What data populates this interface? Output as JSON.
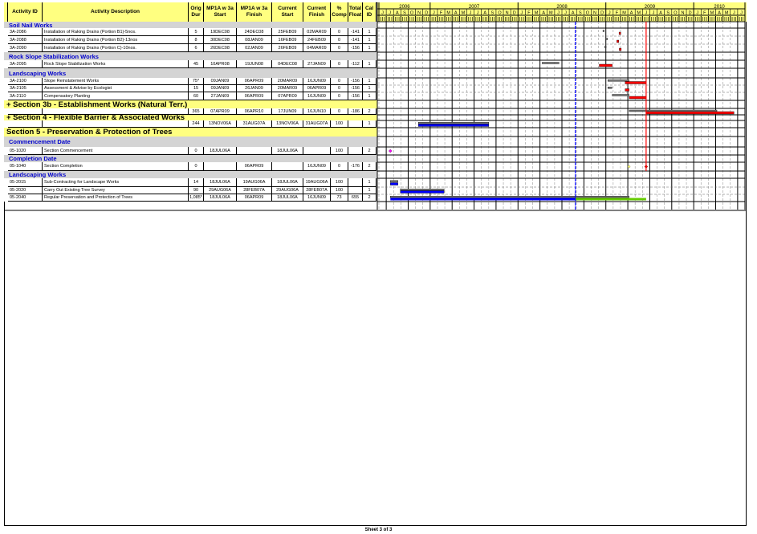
{
  "chart_data": {
    "type": "gantt",
    "columns": [
      {
        "key": "id",
        "label": "Activity ID"
      },
      {
        "key": "desc",
        "label": "Activity Description"
      },
      {
        "key": "dur",
        "label": "Orig Dur"
      },
      {
        "key": "tstart",
        "label": "MP1A w 3a Start"
      },
      {
        "key": "tfinish",
        "label": "MP1A w 3a Finish"
      },
      {
        "key": "cstart",
        "label": "Current Start"
      },
      {
        "key": "cfinish",
        "label": "Current Finish"
      },
      {
        "key": "comp",
        "label": "% Comp"
      },
      {
        "key": "float",
        "label": "Total Float"
      },
      {
        "key": "cal",
        "label": "Cal ID"
      }
    ],
    "timeline": {
      "years": [
        {
          "label": "2006",
          "months": 7
        },
        {
          "label": "2007",
          "months": 12
        },
        {
          "label": "2008",
          "months": 12
        },
        {
          "label": "2009",
          "months": 12
        },
        {
          "label": "2010",
          "months": 7
        }
      ],
      "month_letters_2006": [
        "J",
        "J",
        "A",
        "S",
        "O",
        "N",
        "D"
      ],
      "month_letters_full": [
        "J",
        "F",
        "M",
        "A",
        "M",
        "J",
        "J",
        "A",
        "S",
        "O",
        "N",
        "D"
      ],
      "month_letters_2010": [
        "J",
        "F",
        "M",
        "A",
        "M",
        "J",
        "J"
      ],
      "range": [
        "JUN06",
        "DEC10"
      ]
    },
    "rows": [
      {
        "type": "band",
        "label": "Soil Nail Works"
      },
      {
        "type": "act",
        "id": "3A-2086",
        "desc": "Installation of Raking Drains (Portion B1)-5nos.",
        "dur": "5",
        "tstart": "19DEC08",
        "tfinish": "24DEC08",
        "cstart": "25FEB09",
        "cfinish": "02MAR09",
        "comp": "0",
        "float": "-141",
        "cal": "1"
      },
      {
        "type": "act",
        "id": "3A-2088",
        "desc": "Installation of Raking Drains (Portion B2)-13nos",
        "dur": "8",
        "tstart": "30DEC08",
        "tfinish": "08JAN09",
        "cstart": "16FEB09",
        "cfinish": "24FEB09",
        "comp": "0",
        "float": "-141",
        "cal": "1"
      },
      {
        "type": "act",
        "id": "3A-2090",
        "desc": "Installation of Raking Drains (Portion C)-10nos.",
        "dur": "6",
        "tstart": "26DEC08",
        "tfinish": "02JAN09",
        "cstart": "26FEB09",
        "cfinish": "04MAR09",
        "comp": "0",
        "float": "-156",
        "cal": "1"
      },
      {
        "type": "band",
        "label": "Rock Slope Stabilization Works"
      },
      {
        "type": "act",
        "id": "3A-2095",
        "desc": "Rock Slope Stabilization Works",
        "dur": "45",
        "tstart": "10APR08",
        "tfinish": "19JUN08",
        "cstart": "04DEC08",
        "cfinish": "27JAN09",
        "comp": "0",
        "float": "-112",
        "cal": "1"
      },
      {
        "type": "band",
        "label": "Landscaping Works"
      },
      {
        "type": "act",
        "id": "3A-2100",
        "desc": "Slope Reinstatement Works",
        "dur": "75*",
        "tstart": "09JAN09",
        "tfinish": "06APR09",
        "cstart": "20MAR09",
        "cfinish": "16JUN09",
        "comp": "0",
        "float": "-156",
        "cal": "1"
      },
      {
        "type": "act",
        "id": "3A-2105",
        "desc": "Assessment & Advise by Ecologist",
        "dur": "15",
        "tstart": "09JAN09",
        "tfinish": "26JAN09",
        "cstart": "20MAR09",
        "cfinish": "06APR09",
        "comp": "0",
        "float": "-156",
        "cal": "1"
      },
      {
        "type": "act",
        "id": "3A-2110",
        "desc": "Compensatory Planting",
        "dur": "60",
        "tstart": "27JAN09",
        "tfinish": "06APR09",
        "cstart": "07APR09",
        "cfinish": "16JUN09",
        "comp": "0",
        "float": "-156",
        "cal": "1"
      },
      {
        "type": "section",
        "label": "+ Section 3b - Establishment Works (Natural Terr.)"
      },
      {
        "type": "act",
        "id": "",
        "desc": "",
        "dur": "365",
        "tstart": "07APR09",
        "tfinish": "06APR10",
        "cstart": "17JUN09",
        "cfinish": "16JUN10",
        "comp": "0",
        "float": "-186",
        "cal": "2"
      },
      {
        "type": "section",
        "label": "+ Section 4 - Flexible Barrier & Associated Works"
      },
      {
        "type": "act",
        "id": "",
        "desc": "",
        "dur": "244",
        "tstart": "13NOV06A",
        "tfinish": "31AUG07A",
        "cstart": "13NOV06A",
        "cfinish": "31AUG07A",
        "comp": "100",
        "float": "",
        "cal": "1"
      },
      {
        "type": "section",
        "label": "Section 5 - Preservation & Protection of Trees"
      },
      {
        "type": "band",
        "label": "Commencement Date"
      },
      {
        "type": "act",
        "id": "05-1020",
        "desc": "Section Commencement",
        "dur": "0",
        "tstart": "18JUL06A",
        "tfinish": "",
        "cstart": "18JUL06A",
        "cfinish": "",
        "comp": "100",
        "float": "",
        "cal": "2"
      },
      {
        "type": "band",
        "label": "Completion Date"
      },
      {
        "type": "act",
        "id": "05-1040",
        "desc": "Section Completion",
        "dur": "0",
        "tstart": "",
        "tfinish": "06APR09",
        "cstart": "",
        "cfinish": "16JUN09",
        "comp": "0",
        "float": "-176",
        "cal": "2"
      },
      {
        "type": "band",
        "label": "Landscaping Works"
      },
      {
        "type": "act",
        "id": "05-2015",
        "desc": "Sub-Contracting for Landscape Works",
        "dur": "14",
        "tstart": "18JUL06A",
        "tfinish": "19AUG06A",
        "cstart": "18JUL06A",
        "cfinish": "19AUG06A",
        "comp": "100",
        "float": "",
        "cal": "1"
      },
      {
        "type": "act",
        "id": "05-2020",
        "desc": "Carry Out Existing Tree Survey",
        "dur": "90",
        "tstart": "29AUG06A",
        "tfinish": "28FEB07A",
        "cstart": "29AUG06A",
        "cfinish": "28FEB07A",
        "comp": "100",
        "float": "",
        "cal": "1"
      },
      {
        "type": "act",
        "id": "05-2040",
        "desc": "Regular Preservation and Protection of Trees",
        "dur": "1,085*",
        "tstart": "18JUL06A",
        "tfinish": "06APR09",
        "cstart": "18JUL06A",
        "cfinish": "16JUN09",
        "comp": "73",
        "float": "655",
        "cal": "2"
      }
    ],
    "colors": {
      "critical": "#ff0000",
      "progress": "#0000ff",
      "remaining": "#66cc00",
      "target": "#808080",
      "header": "#ffff80",
      "band": "#d4d4d4",
      "band_text": "#0000cc",
      "data_date": "#0000ff"
    }
  },
  "footer": {
    "sheet": "Sheet 3 of 3"
  }
}
